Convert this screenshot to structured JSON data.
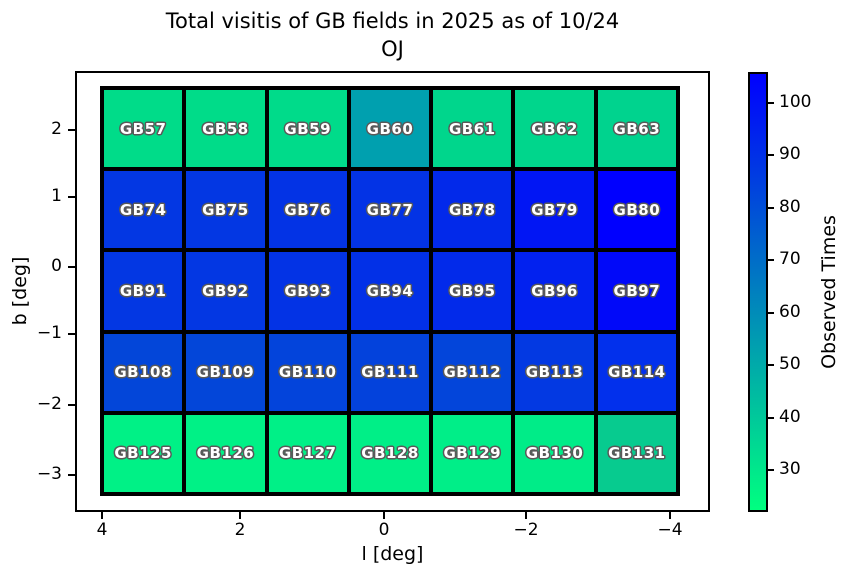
{
  "title": {
    "line1": "Total visitis of GB fields in 2025 as of 10/24",
    "line2": "OJ"
  },
  "x_axis": {
    "label": "l [deg]",
    "ticks": [
      "4",
      "2",
      "0",
      "−2",
      "−4"
    ]
  },
  "y_axis": {
    "label": "b [deg]",
    "ticks": [
      "2",
      "1",
      "0",
      "−1",
      "−2",
      "−3"
    ]
  },
  "colorbar": {
    "label": "Observed Times",
    "ticks": [
      "100",
      "90",
      "80",
      "70",
      "60",
      "50",
      "40",
      "30"
    ],
    "gradient_top": "#0000ff",
    "gradient_bottom": "#00ff80"
  },
  "chart_data": {
    "type": "heatmap",
    "title": "Total visitis of GB fields in 2025 as of 10/24 OJ",
    "xlabel": "l [deg]",
    "ylabel": "b [deg]",
    "x_tick_values": [
      4,
      2,
      0,
      -2,
      -4
    ],
    "y_tick_values": [
      2,
      1,
      0,
      -1,
      -2,
      -3
    ],
    "x_axis_inverted": true,
    "colormap": "winter_r",
    "colorbar_label": "Observed Times",
    "colorbar_tick_values": [
      100,
      90,
      80,
      70,
      60,
      50,
      40,
      30
    ],
    "value_range_estimate": [
      22,
      106
    ],
    "grid": {
      "columns": 7,
      "rows": 5
    },
    "cells": [
      {
        "row": 1,
        "approx_b": 2.1,
        "cells": [
          {
            "label": "GB57",
            "color": "#00dc89",
            "value_estimate": 33
          },
          {
            "label": "GB58",
            "color": "#00dc89",
            "value_estimate": 33
          },
          {
            "label": "GB59",
            "color": "#00db8a",
            "value_estimate": 34
          },
          {
            "label": "GB60",
            "color": "#00a0af",
            "value_estimate": 53
          },
          {
            "label": "GB61",
            "color": "#00d68c",
            "value_estimate": 35
          },
          {
            "label": "GB62",
            "color": "#00d68c",
            "value_estimate": 35
          },
          {
            "label": "GB63",
            "color": "#00d38e",
            "value_estimate": 36
          }
        ]
      },
      {
        "row": 2,
        "approx_b": 0.9,
        "cells": [
          {
            "label": "GB74",
            "color": "#0337e3",
            "value_estimate": 88
          },
          {
            "label": "GB75",
            "color": "#0337e3",
            "value_estimate": 88
          },
          {
            "label": "GB76",
            "color": "#0333e5",
            "value_estimate": 89
          },
          {
            "label": "GB77",
            "color": "#0333e5",
            "value_estimate": 89
          },
          {
            "label": "GB78",
            "color": "#0229ea",
            "value_estimate": 92
          },
          {
            "label": "GB79",
            "color": "#0116f4",
            "value_estimate": 99
          },
          {
            "label": "GB80",
            "color": "#0000ff",
            "value_estimate": 106
          }
        ]
      },
      {
        "row": 3,
        "approx_b": -0.3,
        "cells": [
          {
            "label": "GB91",
            "color": "#0337e3",
            "value_estimate": 88
          },
          {
            "label": "GB92",
            "color": "#0337e3",
            "value_estimate": 88
          },
          {
            "label": "GB93",
            "color": "#0333e5",
            "value_estimate": 89
          },
          {
            "label": "GB94",
            "color": "#0230e7",
            "value_estimate": 90
          },
          {
            "label": "GB95",
            "color": "#022aea",
            "value_estimate": 92
          },
          {
            "label": "GB96",
            "color": "#0221ef",
            "value_estimate": 95
          },
          {
            "label": "GB97",
            "color": "#0109f9",
            "value_estimate": 103
          }
        ]
      },
      {
        "row": 4,
        "approx_b": -1.5,
        "cells": [
          {
            "label": "GB108",
            "color": "#0346d9",
            "value_estimate": 83
          },
          {
            "label": "GB109",
            "color": "#0346d9",
            "value_estimate": 83
          },
          {
            "label": "GB110",
            "color": "#0344db",
            "value_estimate": 84
          },
          {
            "label": "GB111",
            "color": "#0342dc",
            "value_estimate": 84
          },
          {
            "label": "GB112",
            "color": "#0345da",
            "value_estimate": 83
          },
          {
            "label": "GB113",
            "color": "#0339e2",
            "value_estimate": 87
          },
          {
            "label": "GB114",
            "color": "#0230ec",
            "value_estimate": 90
          }
        ]
      },
      {
        "row": 5,
        "approx_b": -2.8,
        "cells": [
          {
            "label": "GB125",
            "color": "#00f186",
            "value_estimate": 27
          },
          {
            "label": "GB126",
            "color": "#00f186",
            "value_estimate": 27
          },
          {
            "label": "GB127",
            "color": "#00f087",
            "value_estimate": 27
          },
          {
            "label": "GB128",
            "color": "#00ef87",
            "value_estimate": 27
          },
          {
            "label": "GB129",
            "color": "#00ee88",
            "value_estimate": 28
          },
          {
            "label": "GB130",
            "color": "#00ec88",
            "value_estimate": 28
          },
          {
            "label": "GB131",
            "color": "#07cb8f",
            "value_estimate": 39
          }
        ]
      }
    ]
  }
}
